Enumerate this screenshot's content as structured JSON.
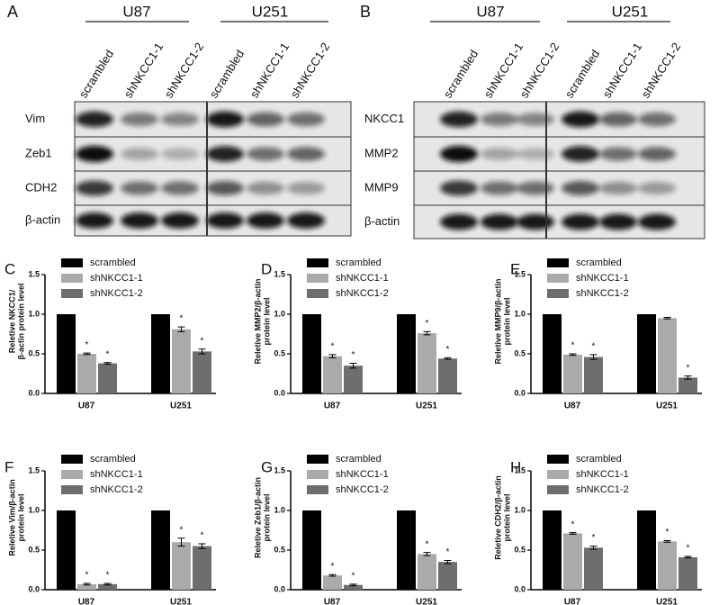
{
  "blots": [
    {
      "panel": "A",
      "groups": [
        "U87",
        "U251"
      ],
      "lanes": [
        "scrambled",
        "shNKCC1-1",
        "shNKCC1-2"
      ],
      "rows": [
        "Vim",
        "Zeb1",
        "CDH2",
        "β-actin"
      ]
    },
    {
      "panel": "B",
      "groups": [
        "U87",
        "U251"
      ],
      "lanes": [
        "scrambled",
        "shNKCC1-1",
        "shNKCC1-2"
      ],
      "rows": [
        "NKCC1",
        "MMP2",
        "MMP9",
        "β-actin"
      ]
    }
  ],
  "chart_data": [
    {
      "type": "bar",
      "panel": "C",
      "ylabel": [
        "Reletive NKCC1/",
        "β-actin protein level"
      ],
      "categories": [
        "U87",
        "U251"
      ],
      "ylim": [
        0,
        1.5
      ],
      "yticks": [
        {
          "value": 0,
          "label": "0.0"
        },
        {
          "value": 0.5,
          "label": "0.5"
        },
        {
          "value": 1,
          "label": "1.0"
        },
        {
          "value": 1.5,
          "label": "1.5"
        }
      ],
      "series": [
        {
          "name": "scrambled",
          "color": "#000000",
          "values": [
            1,
            1
          ],
          "errors": [
            0,
            0
          ],
          "marks": [
            null,
            null
          ]
        },
        {
          "name": "shNKCC1-1",
          "color": "#aaaaaa",
          "values": [
            0.5,
            0.81
          ],
          "errors": [
            0.01,
            0.03
          ],
          "marks": [
            "*",
            "*"
          ]
        },
        {
          "name": "shNKCC1-2",
          "color": "#6e6e6e",
          "values": [
            0.38,
            0.53
          ],
          "errors": [
            0.01,
            0.03
          ],
          "marks": [
            "*",
            "*"
          ]
        }
      ]
    },
    {
      "type": "bar",
      "panel": "D",
      "ylabel": [
        "Reletive MMP2/β-actin",
        "protein level"
      ],
      "categories": [
        "U87",
        "U251"
      ],
      "ylim": [
        0,
        1.5
      ],
      "yticks": [
        {
          "value": 0,
          "label": "0.0"
        },
        {
          "value": 0.5,
          "label": "0.5"
        },
        {
          "value": 1,
          "label": "1.0"
        },
        {
          "value": 1.5,
          "label": "1.5"
        }
      ],
      "series": [
        {
          "name": "scrambled",
          "color": "#000000",
          "values": [
            1,
            1
          ],
          "errors": [
            0,
            0
          ],
          "marks": [
            null,
            null
          ]
        },
        {
          "name": "shNKCC1-1",
          "color": "#aaaaaa",
          "values": [
            0.47,
            0.76
          ],
          "errors": [
            0.02,
            0.02
          ],
          "marks": [
            "*",
            "*"
          ]
        },
        {
          "name": "shNKCC1-2",
          "color": "#6e6e6e",
          "values": [
            0.35,
            0.44
          ],
          "errors": [
            0.03,
            0.01
          ],
          "marks": [
            "*",
            "*"
          ]
        }
      ]
    },
    {
      "type": "bar",
      "panel": "E",
      "ylabel": [
        "Reletive MMP9/β-actin",
        "protein level"
      ],
      "categories": [
        "U87",
        "U251"
      ],
      "ylim": [
        0,
        1.5
      ],
      "yticks": [
        {
          "value": 0,
          "label": "0.0"
        },
        {
          "value": 0.5,
          "label": "0.5"
        },
        {
          "value": 1,
          "label": "1.0"
        },
        {
          "value": 1.5,
          "label": "1.5"
        }
      ],
      "series": [
        {
          "name": "scrambled",
          "color": "#000000",
          "values": [
            1,
            1
          ],
          "errors": [
            0,
            0
          ],
          "marks": [
            null,
            null
          ]
        },
        {
          "name": "shNKCC1-1",
          "color": "#aaaaaa",
          "values": [
            0.49,
            0.95
          ],
          "errors": [
            0.01,
            0.01
          ],
          "marks": [
            "*",
            null
          ]
        },
        {
          "name": "shNKCC1-2",
          "color": "#6e6e6e",
          "values": [
            0.46,
            0.2
          ],
          "errors": [
            0.03,
            0.02
          ],
          "marks": [
            "*",
            "*"
          ]
        }
      ]
    },
    {
      "type": "bar",
      "panel": "F",
      "ylabel": [
        "Reletive Vim/β-actin",
        "protein level"
      ],
      "categories": [
        "U87",
        "U251"
      ],
      "ylim": [
        0,
        1.5
      ],
      "yticks": [
        {
          "value": 0,
          "label": "0.0"
        },
        {
          "value": 0.5,
          "label": "0.5"
        },
        {
          "value": 1,
          "label": "1.0"
        },
        {
          "value": 1.5,
          "label": "1.5"
        }
      ],
      "series": [
        {
          "name": "scrambled",
          "color": "#000000",
          "values": [
            1,
            1
          ],
          "errors": [
            0,
            0
          ],
          "marks": [
            null,
            null
          ]
        },
        {
          "name": "shNKCC1-1",
          "color": "#aaaaaa",
          "values": [
            0.07,
            0.6
          ],
          "errors": [
            0.01,
            0.05
          ],
          "marks": [
            "*",
            "*"
          ]
        },
        {
          "name": "shNKCC1-2",
          "color": "#6e6e6e",
          "values": [
            0.07,
            0.55
          ],
          "errors": [
            0.01,
            0.03
          ],
          "marks": [
            "*",
            "*"
          ]
        }
      ]
    },
    {
      "type": "bar",
      "panel": "G",
      "ylabel": [
        "Reletive Zeb1/β-actin",
        "protein level"
      ],
      "categories": [
        "U87",
        "U251"
      ],
      "ylim": [
        0,
        1.5
      ],
      "yticks": [
        {
          "value": 0,
          "label": "0.0"
        },
        {
          "value": 0.5,
          "label": "0.5"
        },
        {
          "value": 1,
          "label": "1.0"
        },
        {
          "value": 1.5,
          "label": "1.5"
        }
      ],
      "series": [
        {
          "name": "scrambled",
          "color": "#000000",
          "values": [
            1,
            1
          ],
          "errors": [
            0,
            0
          ],
          "marks": [
            null,
            null
          ]
        },
        {
          "name": "shNKCC1-1",
          "color": "#aaaaaa",
          "values": [
            0.18,
            0.45
          ],
          "errors": [
            0.01,
            0.02
          ],
          "marks": [
            "*",
            "*"
          ]
        },
        {
          "name": "shNKCC1-2",
          "color": "#6e6e6e",
          "values": [
            0.06,
            0.35
          ],
          "errors": [
            0.01,
            0.02
          ],
          "marks": [
            "*",
            "*"
          ]
        }
      ]
    },
    {
      "type": "bar",
      "panel": "H",
      "ylabel": [
        "Reletive CDH2/β-actin",
        "protein level"
      ],
      "categories": [
        "U87",
        "U251"
      ],
      "ylim": [
        0,
        1.5
      ],
      "yticks": [
        {
          "value": 0,
          "label": "0.0"
        },
        {
          "value": 0.5,
          "label": "0.5"
        },
        {
          "value": 1,
          "label": "1.0"
        },
        {
          "value": 1.5,
          "label": "1.5"
        }
      ],
      "series": [
        {
          "name": "scrambled",
          "color": "#000000",
          "values": [
            1,
            1
          ],
          "errors": [
            0,
            0
          ],
          "marks": [
            null,
            null
          ]
        },
        {
          "name": "shNKCC1-1",
          "color": "#aaaaaa",
          "values": [
            0.71,
            0.61
          ],
          "errors": [
            0.01,
            0.01
          ],
          "marks": [
            "*",
            "*"
          ]
        },
        {
          "name": "shNKCC1-2",
          "color": "#6e6e6e",
          "values": [
            0.53,
            0.41
          ],
          "errors": [
            0.02,
            0.01
          ],
          "marks": [
            "*",
            "*"
          ]
        }
      ]
    }
  ]
}
